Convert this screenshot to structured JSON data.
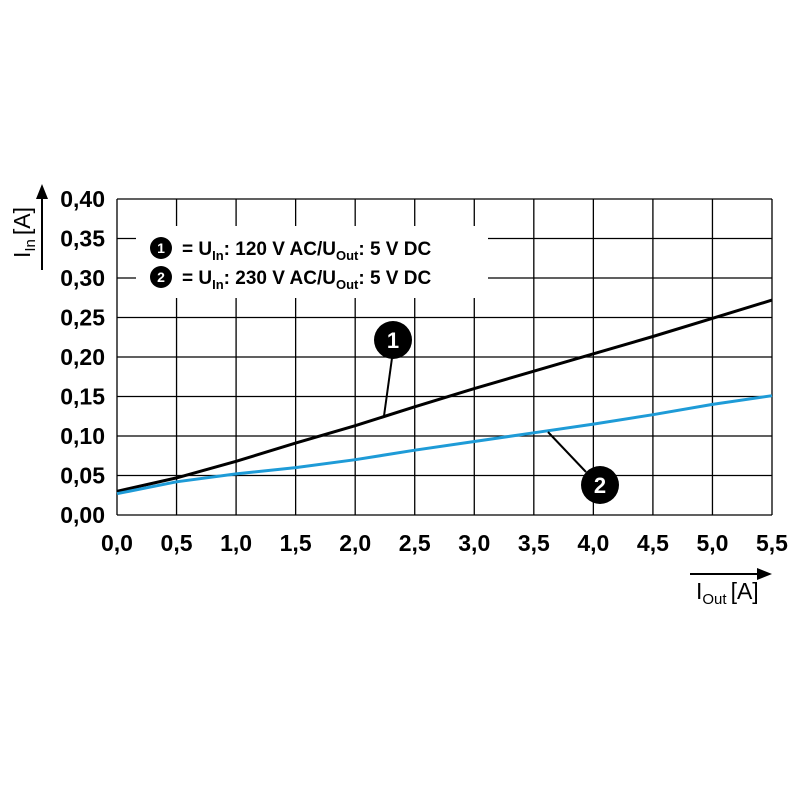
{
  "chart_data": {
    "type": "line",
    "xlim": [
      0,
      5.5
    ],
    "ylim": [
      0,
      0.4
    ],
    "x_ticks": [
      "0,0",
      "0,5",
      "1,0",
      "1,5",
      "2,0",
      "2,5",
      "3,0",
      "3,5",
      "4,0",
      "4,5",
      "5,0",
      "5,5"
    ],
    "y_ticks": [
      "0,00",
      "0,05",
      "0,10",
      "0,15",
      "0,20",
      "0,25",
      "0,30",
      "0,35",
      "0,40"
    ],
    "x_values": [
      0,
      0.5,
      1.0,
      1.5,
      2.0,
      2.5,
      3.0,
      3.5,
      4.0,
      4.5,
      5.0,
      5.5
    ],
    "ylabel": {
      "main": "I",
      "sub": "In",
      "unit": "[A]"
    },
    "xlabel": {
      "main": "I",
      "sub": "Out",
      "unit": "[A]"
    },
    "grid": true,
    "legend_position": "top-left",
    "series": [
      {
        "marker": "1",
        "legend": {
          "u": "= U",
          "u_sub": "In",
          "mid": ": 120 V AC/U",
          "out_sub": "Out",
          "end": ": 5 V DC"
        },
        "color": "#000000",
        "values": [
          0.03,
          0.047,
          0.068,
          0.091,
          0.113,
          0.137,
          0.16,
          0.182,
          0.204,
          0.226,
          0.249,
          0.272
        ]
      },
      {
        "marker": "2",
        "legend": {
          "u": "= U",
          "u_sub": "In",
          "mid": ": 230 V AC/U",
          "out_sub": "Out",
          "end": ": 5 V DC"
        },
        "color": "#1e9bd7",
        "values": [
          0.027,
          0.042,
          0.052,
          0.06,
          0.07,
          0.082,
          0.093,
          0.104,
          0.115,
          0.127,
          0.14,
          0.151
        ]
      }
    ]
  }
}
